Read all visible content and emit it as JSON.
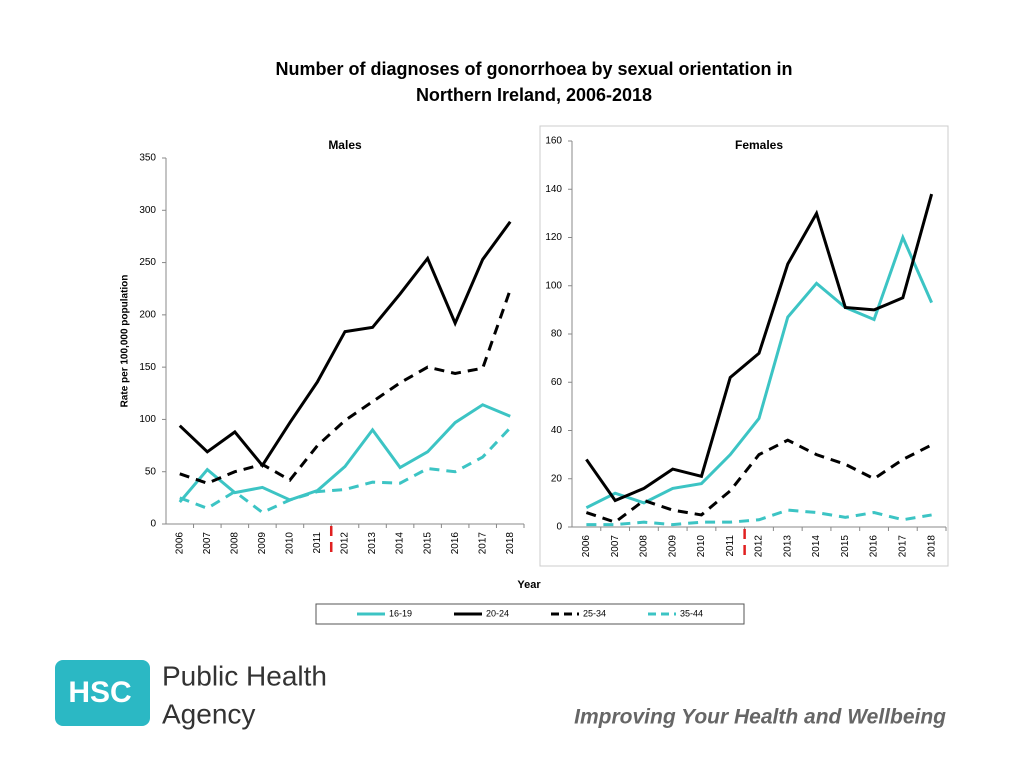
{
  "title": "Number of diagnoses of gonorrhoea by sexual orientation in Northern Ireland, 2006-2018",
  "xlabel": "Year",
  "legend": "bottom",
  "chart_data": [
    {
      "type": "line",
      "title": "Males",
      "ylabel": "Rate per 100,000 population",
      "categories": [
        "2006",
        "2007",
        "2008",
        "2009",
        "2010",
        "2011",
        "2012",
        "2013",
        "2014",
        "2015",
        "2016",
        "2017",
        "2018"
      ],
      "ylim": [
        0,
        350
      ],
      "yticks": [
        0,
        50,
        100,
        150,
        200,
        250,
        300,
        350
      ],
      "series": [
        {
          "name": "16-19",
          "color": "#3cc4c4",
          "dash": false,
          "values": [
            21,
            52,
            30,
            35,
            23,
            32,
            55,
            90,
            54,
            69,
            97,
            114,
            103
          ]
        },
        {
          "name": "20-24",
          "color": "#000000",
          "dash": false,
          "values": [
            94,
            69,
            88,
            56,
            97,
            136,
            184,
            188,
            220,
            254,
            192,
            253,
            289
          ]
        },
        {
          "name": "25-34",
          "color": "#000000",
          "dash": true,
          "values": [
            48,
            39,
            50,
            57,
            42,
            75,
            99,
            117,
            135,
            150,
            144,
            149,
            224
          ]
        },
        {
          "name": "35-44",
          "color": "#3cc4c4",
          "dash": true,
          "values": [
            25,
            15,
            31,
            11,
            23,
            31,
            33,
            40,
            39,
            53,
            50,
            64,
            92
          ]
        }
      ]
    },
    {
      "type": "line",
      "title": "Females",
      "categories": [
        "2006",
        "2007",
        "2008",
        "2009",
        "2010",
        "2011",
        "2012",
        "2013",
        "2014",
        "2015",
        "2016",
        "2017",
        "2018"
      ],
      "ylim": [
        0,
        160
      ],
      "yticks": [
        0,
        20,
        40,
        60,
        80,
        100,
        120,
        140,
        160
      ],
      "series": [
        {
          "color": "#3cc4c4",
          "dash": false,
          "values": [
            8,
            14,
            10,
            16,
            18,
            30,
            45,
            87,
            101,
            91,
            86,
            120,
            93
          ]
        },
        {
          "color": "#000000",
          "dash": false,
          "values": [
            28,
            11,
            16,
            24,
            21,
            62,
            72,
            109,
            130,
            91,
            90,
            95,
            138
          ]
        },
        {
          "color": "#000000",
          "dash": true,
          "values": [
            6,
            2,
            11,
            7,
            5,
            15,
            30,
            36,
            30,
            26,
            20,
            28,
            34
          ]
        },
        {
          "color": "#3cc4c4",
          "dash": true,
          "values": [
            1,
            1,
            2,
            1,
            2,
            2,
            3,
            7,
            6,
            4,
            6,
            3,
            5
          ]
        }
      ]
    }
  ],
  "footer": {
    "logo": "HSC",
    "org_line1": "Public Health",
    "org_line2": "Agency",
    "tagline": "Improving Your Health and Wellbeing"
  }
}
